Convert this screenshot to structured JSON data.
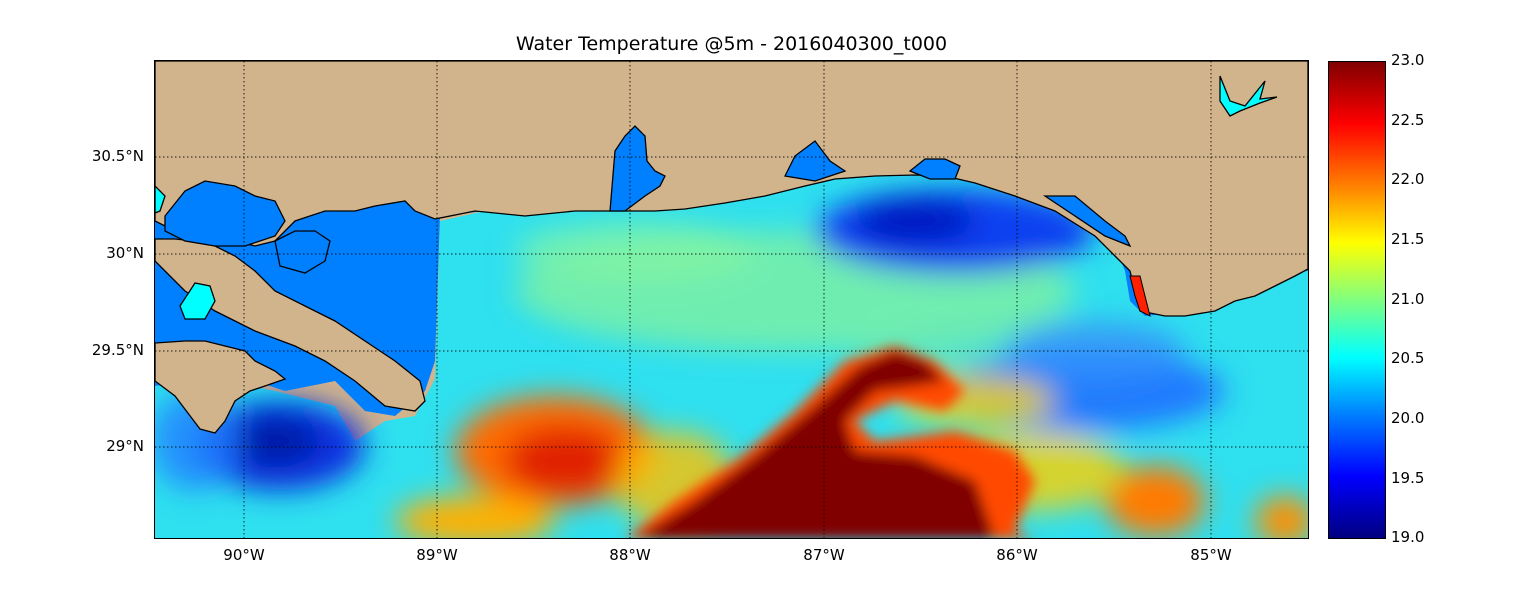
{
  "title": "Water Temperature @5m - 2016040300_t000",
  "map": {
    "y_ticks": [
      "30.5°N",
      "30°N",
      "29.5°N",
      "29°N"
    ],
    "x_ticks": [
      "90°W",
      "89°W",
      "88°W",
      "87°W",
      "86°W",
      "85°W"
    ],
    "land_color": "#d2b48c",
    "water_color": "#0080ff",
    "grid": true,
    "gridline_style": "dotted"
  },
  "colorbar": {
    "range": [
      19.0,
      23.0
    ],
    "ticks": [
      "23.0",
      "22.5",
      "22.0",
      "21.5",
      "21.0",
      "20.5",
      "20.0",
      "19.5",
      "19.0"
    ],
    "colormap": "jet"
  }
}
